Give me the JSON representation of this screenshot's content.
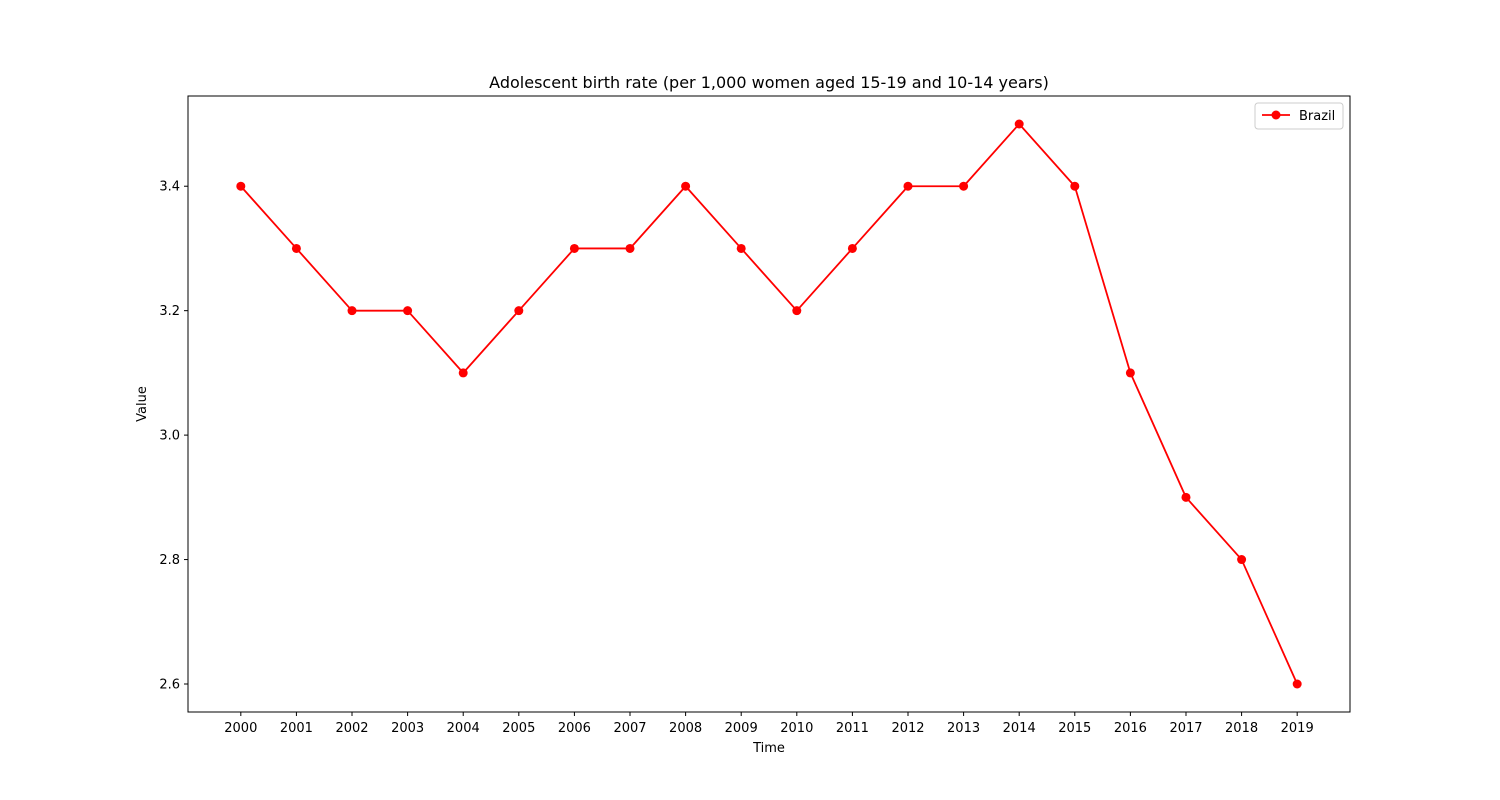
{
  "chart_data": {
    "type": "line",
    "title": "Adolescent birth rate (per 1,000 women aged 15-19 and 10-14 years)",
    "xlabel": "Time",
    "ylabel": "Value",
    "categories": [
      "2000",
      "2001",
      "2002",
      "2003",
      "2004",
      "2005",
      "2006",
      "2007",
      "2008",
      "2009",
      "2010",
      "2011",
      "2012",
      "2013",
      "2014",
      "2015",
      "2016",
      "2017",
      "2018",
      "2019"
    ],
    "series": [
      {
        "name": "Brazil",
        "color": "#ff0000",
        "marker": "circle",
        "values": [
          3.4,
          3.3,
          3.2,
          3.2,
          3.1,
          3.2,
          3.3,
          3.3,
          3.4,
          3.3,
          3.2,
          3.3,
          3.4,
          3.4,
          3.5,
          3.4,
          3.1,
          2.9,
          2.8,
          2.6
        ]
      }
    ],
    "yticks": [
      "2.6",
      "2.8",
      "3.0",
      "3.2",
      "3.4"
    ],
    "ylim": [
      2.555,
      3.545
    ],
    "grid": false,
    "legend_position": "top-right"
  }
}
